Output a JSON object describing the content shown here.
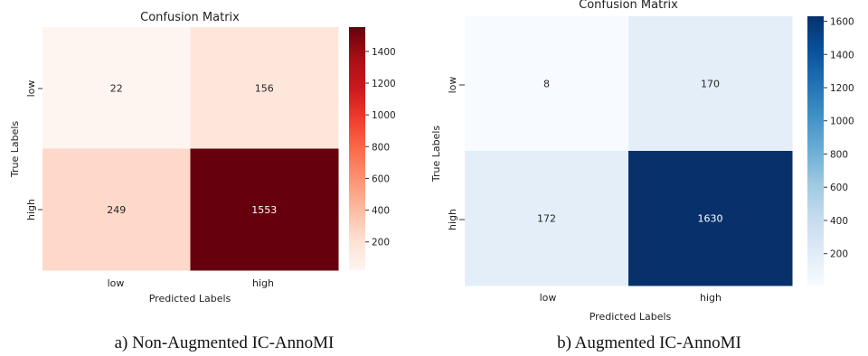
{
  "chart_data": [
    {
      "type": "heatmap",
      "title": "Confusion Matrix",
      "xlabel": "Predicted Labels",
      "ylabel": "True Labels",
      "x_categories": [
        "low",
        "high"
      ],
      "y_categories": [
        "low",
        "high"
      ],
      "values": [
        [
          22,
          156
        ],
        [
          249,
          1553
        ]
      ],
      "colormap": "Reds",
      "colorbar_ticks": [
        200,
        400,
        600,
        800,
        1000,
        1200,
        1400
      ],
      "colorbar_range": [
        22,
        1553
      ],
      "caption": "a) Non-Augmented IC-AnnoMI"
    },
    {
      "type": "heatmap",
      "title": "Confusion Matrix",
      "xlabel": "Predicted Labels",
      "ylabel": "True Labels",
      "x_categories": [
        "low",
        "high"
      ],
      "y_categories": [
        "low",
        "high"
      ],
      "values": [
        [
          8,
          170
        ],
        [
          172,
          1630
        ]
      ],
      "colormap": "Blues",
      "colorbar_ticks": [
        200,
        400,
        600,
        800,
        1000,
        1200,
        1400,
        1600
      ],
      "colorbar_range": [
        8,
        1630
      ],
      "caption": "b) Augmented IC-AnnoMI"
    }
  ]
}
